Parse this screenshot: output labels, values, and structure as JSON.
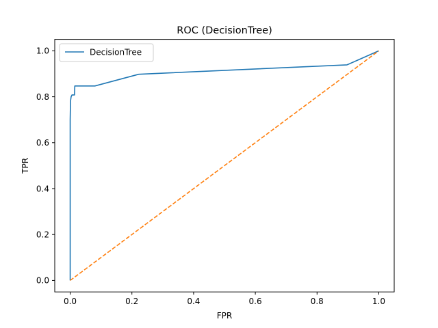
{
  "chart_data": {
    "type": "line",
    "title": "ROC (DecisionTree)",
    "xlabel": "FPR",
    "ylabel": "TPR",
    "xlim": [
      -0.05,
      1.05
    ],
    "ylim": [
      -0.05,
      1.05
    ],
    "xticks": [
      0.0,
      0.2,
      0.4,
      0.6,
      0.8,
      1.0
    ],
    "yticks": [
      0.0,
      0.2,
      0.4,
      0.6,
      0.8,
      1.0
    ],
    "xtick_labels": [
      "0.0",
      "0.2",
      "0.4",
      "0.6",
      "0.8",
      "1.0"
    ],
    "ytick_labels": [
      "0.0",
      "0.2",
      "0.4",
      "0.6",
      "0.8",
      "1.0"
    ],
    "grid": false,
    "legend_position": "upper-left",
    "series": [
      {
        "name": "DecisionTree",
        "color": "#1f77b4",
        "style": "solid",
        "x": [
          0.0,
          0.0,
          0.001,
          0.003,
          0.006,
          0.014,
          0.015,
          0.08,
          0.222,
          0.897,
          1.0
        ],
        "y": [
          0.0,
          0.7,
          0.78,
          0.8,
          0.808,
          0.808,
          0.847,
          0.847,
          0.898,
          0.939,
          1.0
        ]
      },
      {
        "color": "#ff7f0e",
        "style": "dashed",
        "x": [
          0.0,
          1.0
        ],
        "y": [
          0.0,
          1.0
        ]
      }
    ]
  }
}
